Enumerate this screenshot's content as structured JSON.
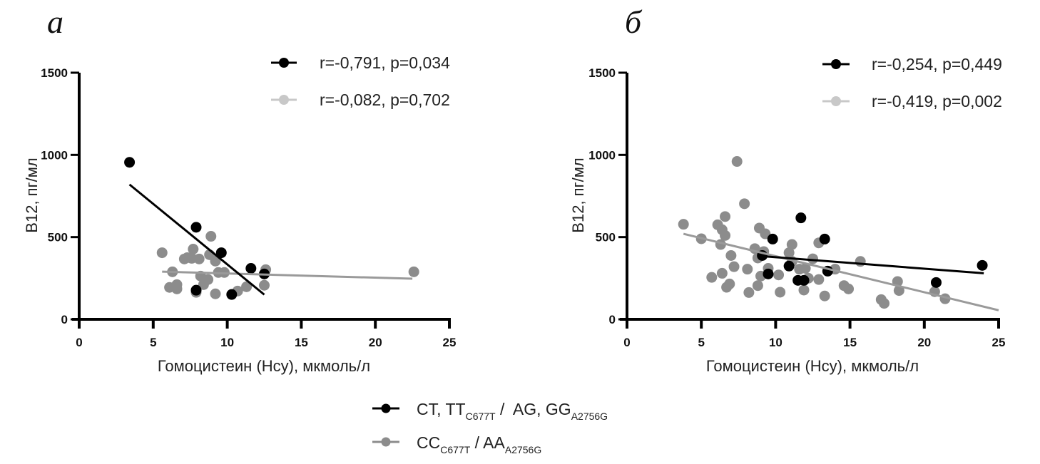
{
  "chart_data": [
    {
      "type": "scatter",
      "panel_label": "а",
      "xlabel": "Гомоцистеин (Hcy), мкмоль/л",
      "ylabel": "B12, пг/мл",
      "xlim": [
        0,
        25
      ],
      "ylim": [
        0,
        1500
      ],
      "x_ticks": [
        "0",
        "5",
        "10",
        "15",
        "20",
        "25"
      ],
      "y_ticks": [
        "0",
        "500",
        "1000",
        "1500"
      ],
      "grid": false,
      "legend_position": "top-right",
      "series": [
        {
          "name": "CT, TT C677T / AG, GG A2756G",
          "legend_label": "r=-0,791, p=0,034",
          "color": "#000000",
          "legend_color": "#000000",
          "points": [
            [
              3.4,
              955
            ],
            [
              7.9,
              560
            ],
            [
              9.6,
              405
            ],
            [
              11.6,
              310
            ],
            [
              12.5,
              276
            ],
            [
              7.9,
              177
            ],
            [
              10.3,
              151
            ]
          ],
          "trendline": [
            [
              3.4,
              820
            ],
            [
              12.5,
              150
            ]
          ]
        },
        {
          "name": "CC C677T / AA A2756G",
          "legend_label": "r=-0,082, p=0,702",
          "color": "#8c8c8c",
          "legend_color": "#c8c8c8",
          "points": [
            [
              5.6,
              405
            ],
            [
              8.9,
              505
            ],
            [
              7.7,
              427
            ],
            [
              7.3,
              375
            ],
            [
              7.6,
              371
            ],
            [
              8.8,
              393
            ],
            [
              7.1,
              367
            ],
            [
              6.3,
              289
            ],
            [
              8.1,
              367
            ],
            [
              9.2,
              354
            ],
            [
              6.6,
              211
            ],
            [
              9.4,
              285
            ],
            [
              9.8,
              285
            ],
            [
              8.2,
              263
            ],
            [
              8.4,
              211
            ],
            [
              8.7,
              242
            ],
            [
              7.9,
              164
            ],
            [
              9.2,
              155
            ],
            [
              6.6,
              185
            ],
            [
              6.1,
              194
            ],
            [
              11.3,
              198
            ],
            [
              12.6,
              302
            ],
            [
              12.5,
              207
            ],
            [
              10.7,
              172
            ],
            [
              22.6,
              289
            ]
          ],
          "trendline": [
            [
              5.6,
              290
            ],
            [
              22.5,
              247
            ]
          ]
        }
      ]
    },
    {
      "type": "scatter",
      "panel_label": "б",
      "xlabel": "Гомоцистеин (Hcy), мкмоль/л",
      "ylabel": "B12, пг/мл",
      "xlim": [
        0,
        25
      ],
      "ylim": [
        0,
        1500
      ],
      "x_ticks": [
        "0",
        "5",
        "10",
        "15",
        "20",
        "25"
      ],
      "y_ticks": [
        "0",
        "500",
        "1000",
        "1500"
      ],
      "grid": false,
      "legend_position": "top-right",
      "series": [
        {
          "name": "CT, TT C677T / AG, GG A2756G",
          "legend_label": "r=-0,254, p=0,449",
          "color": "#000000",
          "legend_color": "#000000",
          "points": [
            [
              11.7,
              617
            ],
            [
              9.8,
              488
            ],
            [
              13.3,
              488
            ],
            [
              9.1,
              388
            ],
            [
              10.9,
              324
            ],
            [
              9.5,
              276
            ],
            [
              11.5,
              237
            ],
            [
              11.9,
              237
            ],
            [
              13.5,
              293
            ],
            [
              20.8,
              224
            ],
            [
              23.9,
              328
            ]
          ],
          "trendline": [
            [
              9.0,
              385
            ],
            [
              24.0,
              280
            ]
          ]
        },
        {
          "name": "CC C677T / AA A2756G",
          "legend_label": "r=-0,419, p=0,002",
          "color": "#8c8c8c",
          "legend_color": "#c8c8c8",
          "points": [
            [
              3.8,
              578
            ],
            [
              7.4,
              960
            ],
            [
              7.9,
              703
            ],
            [
              6.6,
              625
            ],
            [
              6.1,
              575
            ],
            [
              6.4,
              545
            ],
            [
              6.6,
              510
            ],
            [
              5.0,
              490
            ],
            [
              7.0,
              388
            ],
            [
              6.3,
              455
            ],
            [
              8.6,
              430
            ],
            [
              9.2,
              412
            ],
            [
              8.9,
              555
            ],
            [
              9.3,
              520
            ],
            [
              8.8,
              373
            ],
            [
              8.1,
              305
            ],
            [
              7.2,
              320
            ],
            [
              9.5,
              310
            ],
            [
              9.0,
              263
            ],
            [
              10.2,
              270
            ],
            [
              10.9,
              405
            ],
            [
              11.1,
              455
            ],
            [
              11.1,
              352
            ],
            [
              11.6,
              305
            ],
            [
              12.0,
              310
            ],
            [
              12.5,
              368
            ],
            [
              12.9,
              465
            ],
            [
              14.0,
              305
            ],
            [
              15.7,
              352
            ],
            [
              12.2,
              250
            ],
            [
              12.9,
              242
            ],
            [
              13.3,
              142
            ],
            [
              11.9,
              178
            ],
            [
              10.3,
              165
            ],
            [
              14.6,
              205
            ],
            [
              14.9,
              185
            ],
            [
              8.8,
              205
            ],
            [
              8.2,
              163
            ],
            [
              5.7,
              255
            ],
            [
              6.9,
              215
            ],
            [
              6.7,
              195
            ],
            [
              6.4,
              280
            ],
            [
              17.1,
              120
            ],
            [
              17.3,
              97
            ],
            [
              18.2,
              230
            ],
            [
              18.3,
              175
            ],
            [
              20.7,
              168
            ],
            [
              21.4,
              125
            ]
          ],
          "trendline": [
            [
              3.8,
              520
            ],
            [
              25.0,
              55
            ]
          ]
        }
      ]
    }
  ],
  "shared_legend": {
    "items": [
      {
        "main1": "CT, TT",
        "sub1": "C677T",
        "mid": " /  AG, GG",
        "sub2": "A2756G",
        "color": "#000000"
      },
      {
        "main1": "CC",
        "sub1": "C677T",
        "mid": " / AA",
        "sub2": "A2756G",
        "color": "#8c8c8c"
      }
    ]
  }
}
